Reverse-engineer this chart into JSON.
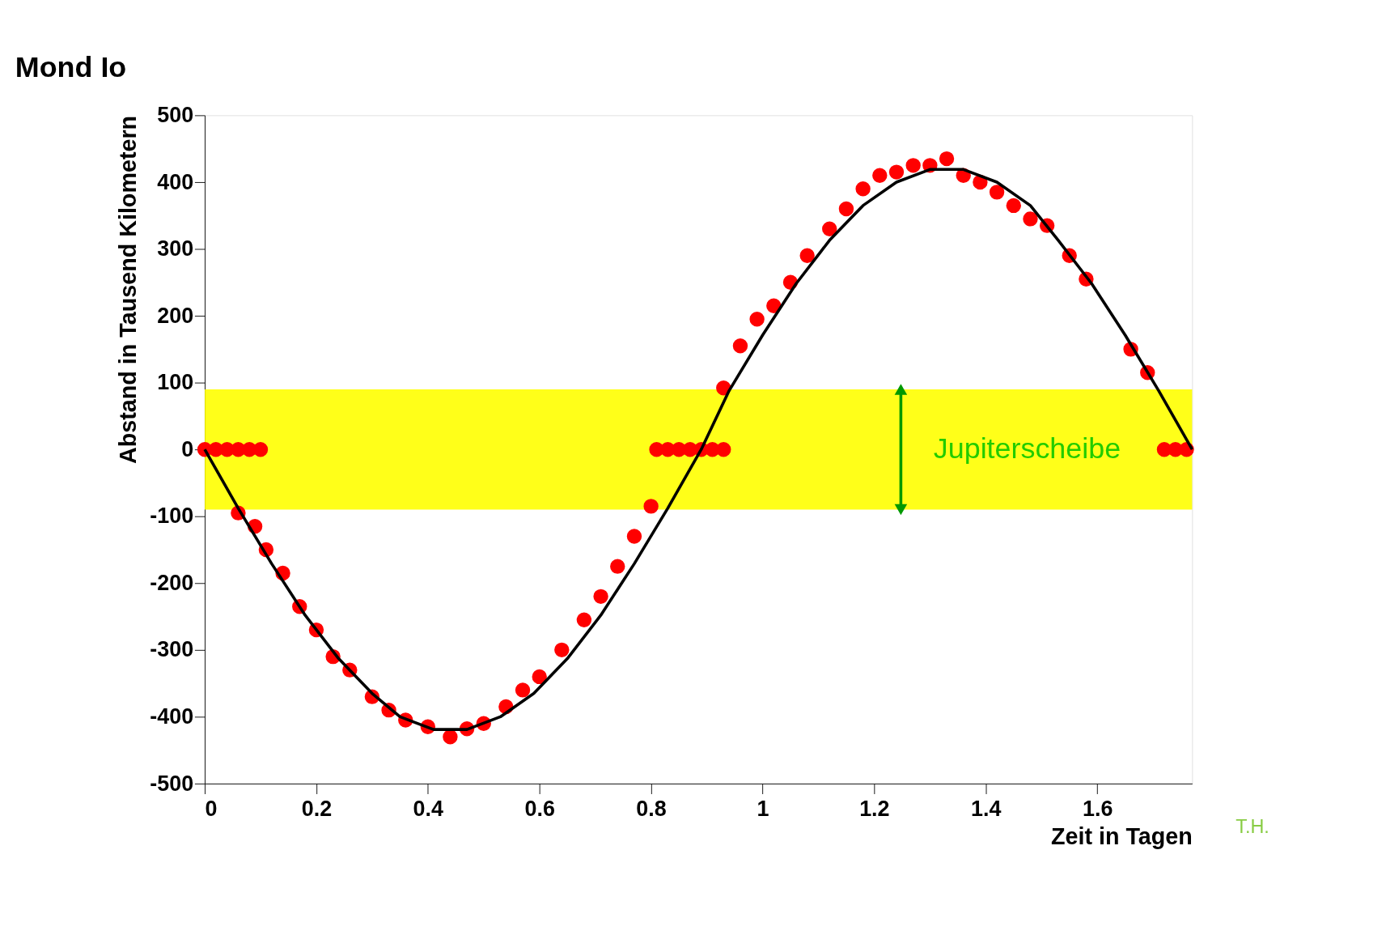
{
  "chart_data": {
    "type": "scatter",
    "title": "Mond Io",
    "xlabel": "Zeit in Tagen",
    "ylabel": "Abstand in Tausend Kilometern",
    "xlim": [
      0,
      1.77
    ],
    "xticks": [
      0,
      0.2,
      0.4,
      0.6,
      0.8,
      1,
      1.2,
      1.4,
      1.6
    ],
    "ylim": [
      -500,
      500
    ],
    "yticks": [
      -500,
      -400,
      -300,
      -200,
      -100,
      0,
      100,
      200,
      300,
      400,
      500
    ],
    "grid": false,
    "legend": false,
    "series": [
      {
        "color": "#ff0000",
        "marker": "circle",
        "x": [
          0,
          0.02,
          0.04,
          0.06,
          0.08,
          0.1,
          0.06,
          0.09,
          0.11,
          0.14,
          0.17,
          0.2,
          0.23,
          0.26,
          0.3,
          0.33,
          0.36,
          0.4,
          0.44,
          0.47,
          0.5,
          0.54,
          0.57,
          0.6,
          0.64,
          0.68,
          0.71,
          0.74,
          0.77,
          0.8,
          0.81,
          0.83,
          0.85,
          0.87,
          0.89,
          0.91,
          0.93,
          0.93,
          0.96,
          0.99,
          1.02,
          1.05,
          1.08,
          1.12,
          1.15,
          1.18,
          1.21,
          1.24,
          1.27,
          1.3,
          1.33,
          1.36,
          1.39,
          1.42,
          1.45,
          1.48,
          1.51,
          1.55,
          1.58,
          1.66,
          1.69,
          1.72,
          1.74,
          1.76
        ],
        "values": [
          0,
          0,
          0,
          0,
          0,
          0,
          -95,
          -115,
          -150,
          -185,
          -235,
          -270,
          -310,
          -330,
          -370,
          -390,
          -405,
          -415,
          -430,
          -418,
          -410,
          -385,
          -360,
          -340,
          -300,
          -255,
          -220,
          -175,
          -130,
          -85,
          0,
          0,
          0,
          0,
          0,
          0,
          0,
          92,
          155,
          195,
          215,
          250,
          290,
          330,
          360,
          390,
          410,
          415,
          425,
          425,
          435,
          410,
          400,
          385,
          365,
          345,
          335,
          290,
          255,
          150,
          115,
          0,
          0,
          0
        ]
      },
      {
        "type": "line",
        "color": "#000000",
        "line_style": "solid",
        "x": [
          0,
          0.06,
          0.12,
          0.18,
          0.24,
          0.3,
          0.35,
          0.41,
          0.47,
          0.53,
          0.59,
          0.65,
          0.71,
          0.77,
          0.83,
          0.89,
          0.94,
          1.0,
          1.06,
          1.12,
          1.18,
          1.24,
          1.3,
          1.36,
          1.42,
          1.48,
          1.53,
          1.59,
          1.65,
          1.71,
          1.77
        ],
        "values": [
          0,
          -88,
          -171,
          -248,
          -313,
          -365,
          -400,
          -419,
          -419,
          -400,
          -365,
          -313,
          -248,
          -171,
          -88,
          0,
          88,
          171,
          248,
          313,
          365,
          400,
          419,
          419,
          400,
          365,
          313,
          248,
          171,
          88,
          0
        ]
      }
    ],
    "bands": [
      {
        "axis": "y",
        "from": -90,
        "to": 90,
        "color": "#ffff00"
      }
    ],
    "annotations": [
      "Jupiterscheibe",
      "T.H."
    ]
  }
}
